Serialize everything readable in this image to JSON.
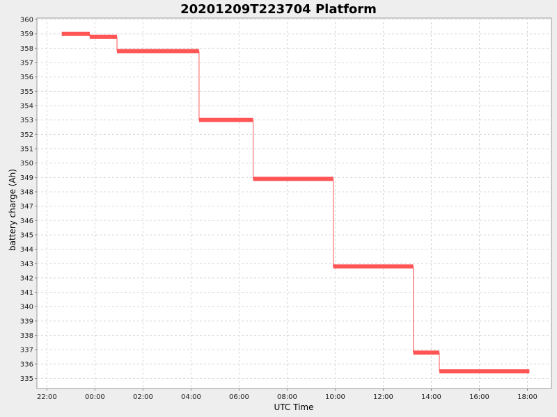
{
  "chart_data": {
    "type": "line",
    "title": "20201209T223704 Platform",
    "xlabel": "UTC Time",
    "ylabel": "battery charge (Ah)",
    "x_tick_labels": [
      "22:00",
      "00:00",
      "02:00",
      "04:00",
      "06:00",
      "08:00",
      "10:00",
      "12:00",
      "14:00",
      "16:00",
      "18:00"
    ],
    "y_tick_labels": [
      "335",
      "336",
      "337",
      "338",
      "339",
      "340",
      "341",
      "342",
      "343",
      "344",
      "345",
      "346",
      "347",
      "348",
      "349",
      "350",
      "351",
      "352",
      "353",
      "354",
      "355",
      "356",
      "357",
      "358",
      "359",
      "360"
    ],
    "xlim": [
      "2020-12-09 21:35",
      "2020-12-10 19:00"
    ],
    "ylim": [
      334.3,
      360.1
    ],
    "grid": true,
    "series": [
      {
        "color": "#ff5555",
        "segments": [
          {
            "start": "2020-12-09 22:37",
            "end": "2020-12-09 23:47",
            "value": 359.0
          },
          {
            "start": "2020-12-09 23:47",
            "end": "2020-12-10 00:55",
            "value": 358.8
          },
          {
            "start": "2020-12-10 00:55",
            "end": "2020-12-10 04:20",
            "value": 357.8
          },
          {
            "start": "2020-12-10 04:20",
            "end": "2020-12-10 06:35",
            "value": 353.0
          },
          {
            "start": "2020-12-10 06:35",
            "end": "2020-12-10 09:55",
            "value": 348.9
          },
          {
            "start": "2020-12-10 09:55",
            "end": "2020-12-10 13:15",
            "value": 342.8
          },
          {
            "start": "2020-12-10 13:15",
            "end": "2020-12-10 14:20",
            "value": 336.8
          },
          {
            "start": "2020-12-10 14:20",
            "end": "2020-12-10 18:05",
            "value": 335.5
          }
        ]
      }
    ]
  }
}
